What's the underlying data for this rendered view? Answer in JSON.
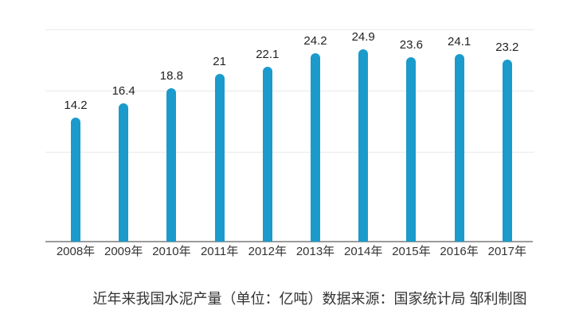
{
  "chart_data": {
    "type": "bar",
    "title": "",
    "caption": "近年来我国水泥产量（单位：亿吨）数据来源：国家统计局 邹利制图",
    "categories": [
      "2008年",
      "2009年",
      "2010年",
      "2011年",
      "2012年",
      "2013年",
      "2014年",
      "2015年",
      "2016年",
      "2017年"
    ],
    "values": [
      14.2,
      16.4,
      18.8,
      21,
      22.1,
      24.2,
      24.9,
      23.6,
      24.1,
      23.2
    ],
    "series_name": "水泥产量",
    "unit": "亿吨",
    "xlabel": "",
    "ylabel": "",
    "y_tick_labels_visible": false,
    "gridlines": "horizontal",
    "legend": "none",
    "colors": {
      "bar": "#1a9bcb",
      "gridline": "#e9e9e9",
      "axis_line": "#9b9b9b",
      "value_label": "#222222",
      "x_label": "#333333",
      "caption": "#333333",
      "background": "#ffffff"
    }
  }
}
